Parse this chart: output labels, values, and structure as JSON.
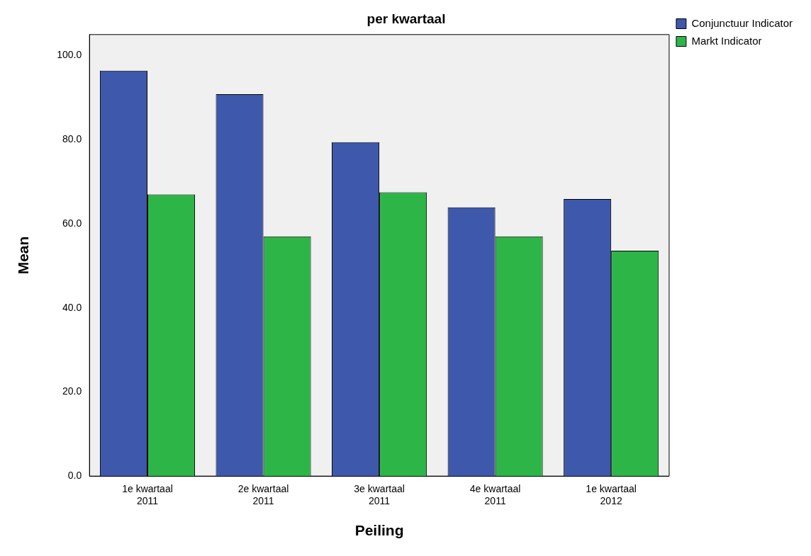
{
  "chart_data": {
    "type": "bar",
    "title": "per kwartaal",
    "xlabel": "Peiling",
    "ylabel": "Mean",
    "categories": [
      "1e kwartaal 2011",
      "2e kwartaal 2011",
      "3e kwartaal 2011",
      "4e kwartaal 2011",
      "1e kwartaal 2012"
    ],
    "series": [
      {
        "name": "Conjunctuur Indicator",
        "color": "#3e58ac",
        "values": [
          96.4,
          90.8,
          79.4,
          63.9,
          65.9
        ]
      },
      {
        "name": "Markt Indicator",
        "color": "#2eb548",
        "values": [
          67.0,
          57.0,
          67.5,
          57.0,
          53.6
        ]
      }
    ],
    "ylim": [
      0,
      105
    ],
    "yticks": [
      {
        "value": 0,
        "label": "0.0"
      },
      {
        "value": 20,
        "label": "20.0"
      },
      {
        "value": 40,
        "label": "40.0"
      },
      {
        "value": 60,
        "label": "60.0"
      },
      {
        "value": 80,
        "label": "80.0"
      },
      {
        "value": 100,
        "label": "100.0"
      }
    ],
    "grid": false,
    "legend": "top right"
  }
}
